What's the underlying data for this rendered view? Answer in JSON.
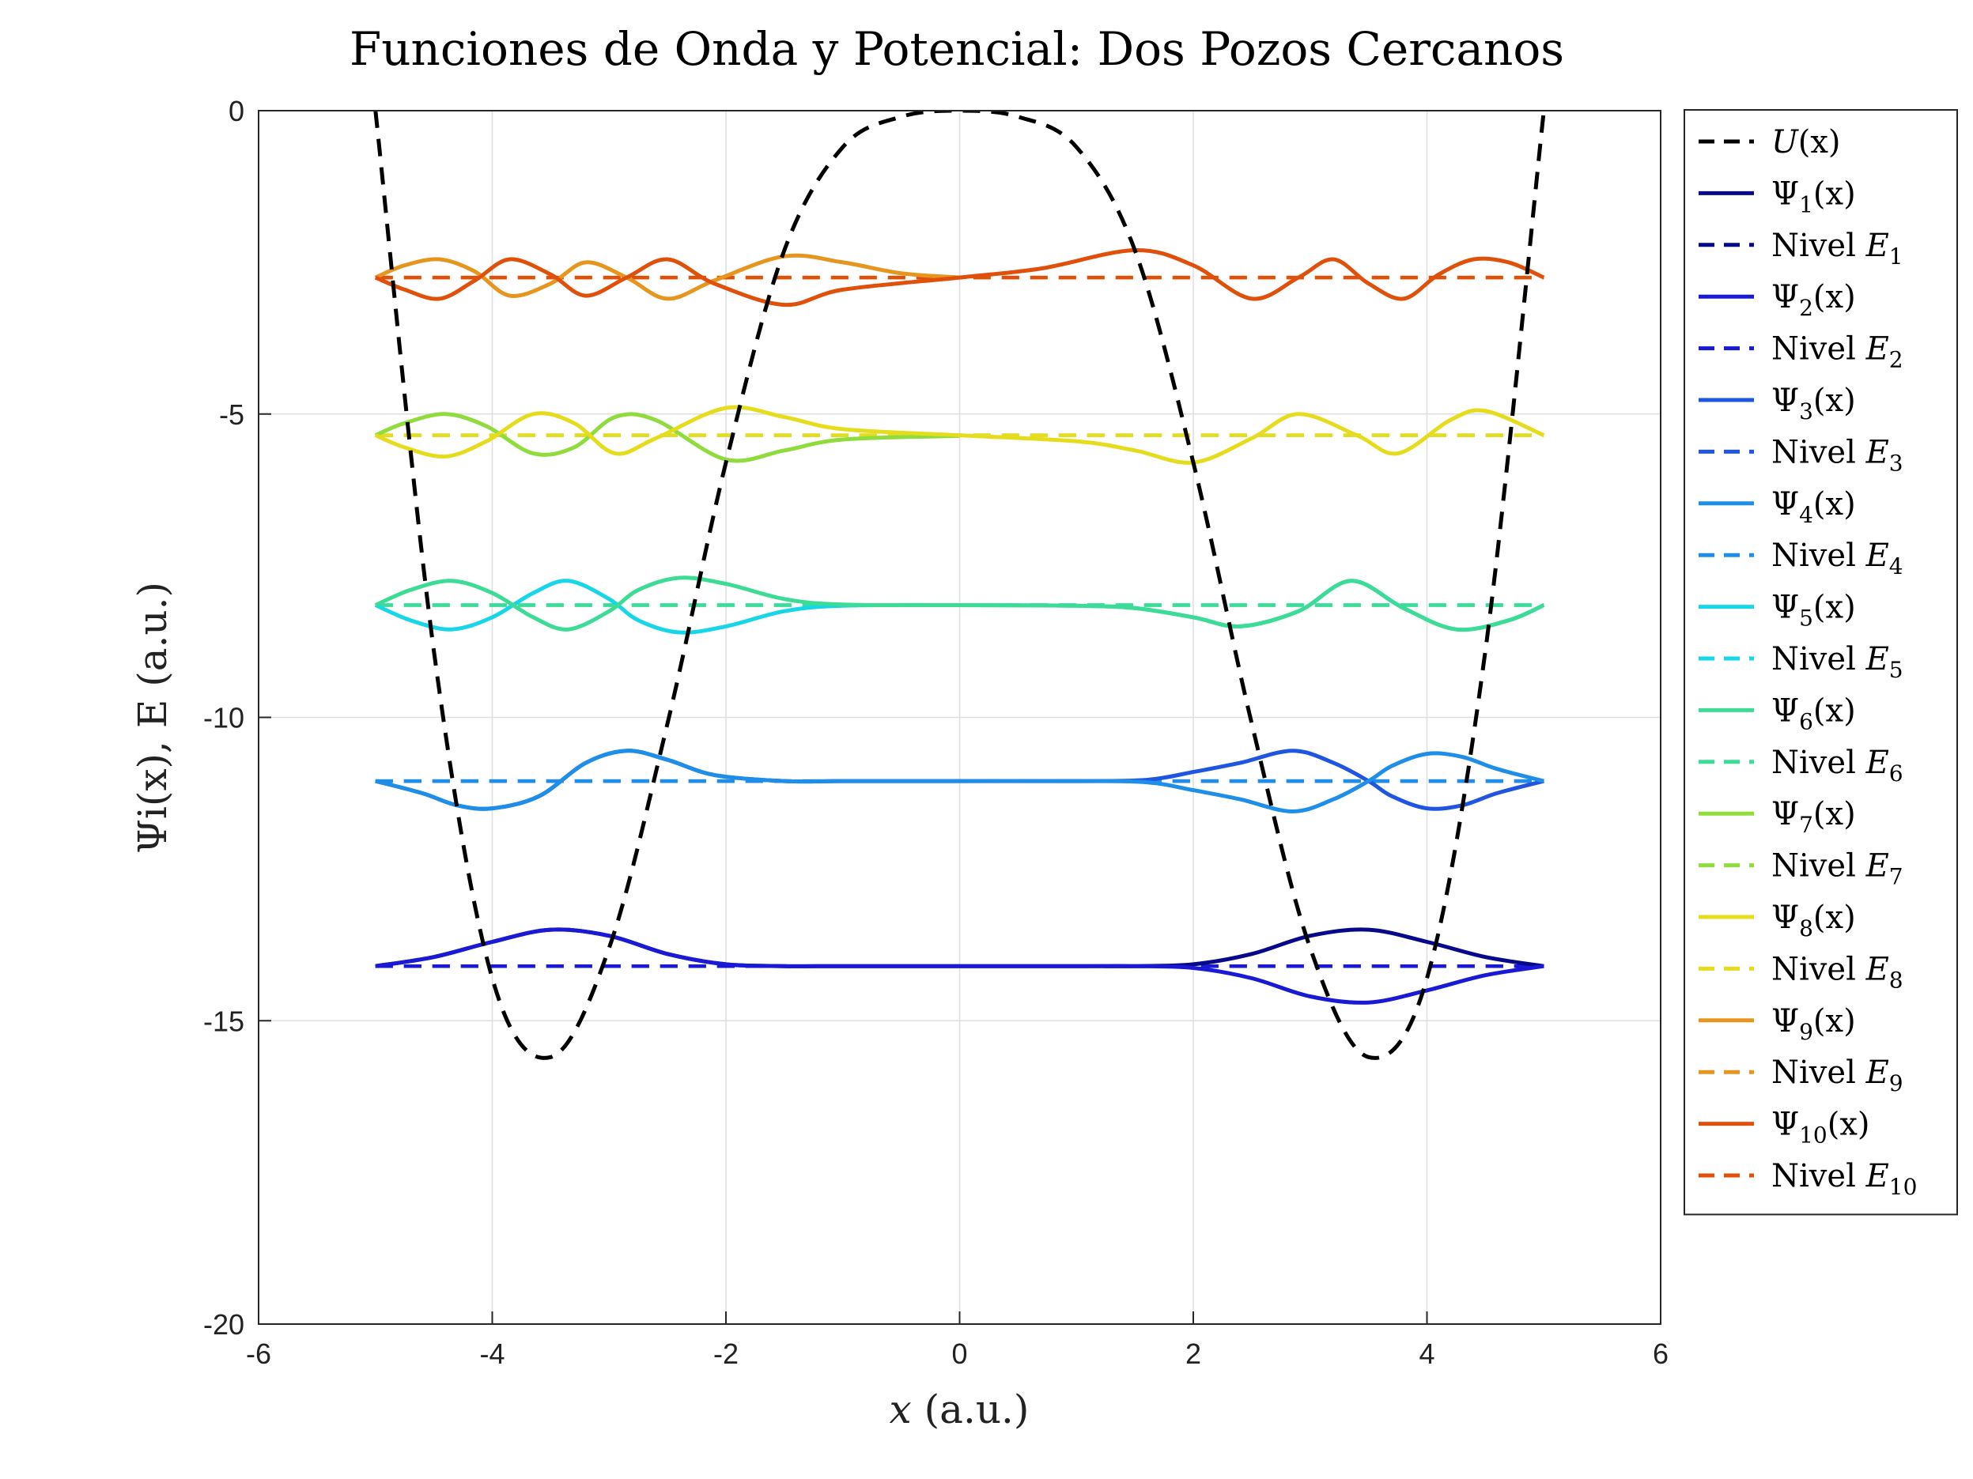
{
  "chart_data": {
    "type": "line",
    "title": "Funciones de Onda y Potencial: Dos Pozos Cercanos",
    "xlabel": "x (a.u.)",
    "ylabel": "Ψi(x), E (a.u.)",
    "xlim": [
      -6,
      6
    ],
    "ylim": [
      -20,
      0
    ],
    "xticks": [
      -6,
      -4,
      -2,
      0,
      2,
      4,
      6
    ],
    "yticks": [
      0,
      -5,
      -10,
      -15,
      -20
    ],
    "xtick_labels": [
      "-6",
      "-4",
      "-2",
      "0",
      "2",
      "4",
      "6"
    ],
    "ytick_labels": [
      "0",
      "-5",
      "-10",
      "-15",
      "-20"
    ],
    "grid": true,
    "legend_position": "outside-right",
    "potential": {
      "name": "U(x)",
      "color": "#000000",
      "style": "dashed",
      "x": [
        -5,
        -4.5,
        -4,
        -3.5,
        -3,
        -2.5,
        -2,
        -1.5,
        -1,
        -0.5,
        0,
        0.5,
        1,
        1.5,
        2,
        2.5,
        3,
        3.5,
        4,
        4.5,
        5
      ],
      "y": [
        0,
        -8.9,
        -14.3,
        -15.6,
        -13.8,
        -10.1,
        -5.8,
        -2.3,
        -0.6,
        -0.1,
        0,
        -0.1,
        -0.6,
        -2.3,
        -5.8,
        -10.1,
        -13.8,
        -15.6,
        -14.3,
        -8.9,
        0
      ]
    },
    "energy_levels": [
      -14.1,
      -14.1,
      -11.05,
      -11.05,
      -8.15,
      -8.15,
      -5.35,
      -5.35,
      -2.75,
      -2.75
    ],
    "series": [
      {
        "name": "Ψ1(x)",
        "color": "#08088a",
        "style": "solid",
        "x": [
          -5,
          -4.5,
          -4,
          -3.5,
          -3,
          -2.5,
          -2,
          -1.5,
          -1,
          0,
          1,
          1.5,
          2,
          2.5,
          3,
          3.5,
          4,
          4.5,
          5
        ],
        "y": [
          -14.1,
          -13.95,
          -13.7,
          -13.5,
          -13.6,
          -13.9,
          -14.07,
          -14.1,
          -14.1,
          -14.1,
          -14.1,
          -14.1,
          -14.07,
          -13.9,
          -13.6,
          -13.5,
          -13.7,
          -13.95,
          -14.1
        ]
      },
      {
        "name": "Nivel E1",
        "color": "#08088a",
        "style": "dashed",
        "x": [
          -5,
          5
        ],
        "y": [
          -14.1,
          -14.1
        ]
      },
      {
        "name": "Ψ2(x)",
        "color": "#1a1ad6",
        "style": "solid",
        "x": [
          -5,
          -4.5,
          -4,
          -3.5,
          -3,
          -2.5,
          -2,
          -1.5,
          -1,
          0,
          1,
          1.5,
          2,
          2.5,
          3,
          3.5,
          4,
          4.5,
          5
        ],
        "y": [
          -14.1,
          -13.95,
          -13.7,
          -13.5,
          -13.6,
          -13.9,
          -14.07,
          -14.1,
          -14.1,
          -14.1,
          -14.1,
          -14.1,
          -14.13,
          -14.3,
          -14.6,
          -14.7,
          -14.5,
          -14.25,
          -14.1
        ]
      },
      {
        "name": "Nivel E2",
        "color": "#1a1ad6",
        "style": "dashed",
        "x": [
          -5,
          5
        ],
        "y": [
          -14.1,
          -14.1
        ]
      },
      {
        "name": "Ψ3(x)",
        "color": "#1f55e0",
        "style": "solid",
        "x": [
          -5,
          -4.6,
          -4.3,
          -4,
          -3.6,
          -3.2,
          -2.85,
          -2.5,
          -2.1,
          -1.5,
          -1,
          0,
          1,
          1.6,
          2,
          2.4,
          2.85,
          3.2,
          3.5,
          3.7,
          4,
          4.3,
          4.6,
          5
        ],
        "y": [
          -11.05,
          -11.25,
          -11.45,
          -11.5,
          -11.3,
          -10.75,
          -10.55,
          -10.7,
          -10.95,
          -11.05,
          -11.05,
          -11.05,
          -11.05,
          -11.03,
          -10.9,
          -10.75,
          -10.55,
          -10.75,
          -11.05,
          -11.3,
          -11.5,
          -11.45,
          -11.25,
          -11.05
        ]
      },
      {
        "name": "Nivel E3",
        "color": "#1f55e0",
        "style": "dashed",
        "x": [
          -5,
          5
        ],
        "y": [
          -11.05,
          -11.05
        ]
      },
      {
        "name": "Ψ4(x)",
        "color": "#1e8ee8",
        "style": "solid",
        "x": [
          -5,
          -4.6,
          -4.3,
          -4,
          -3.6,
          -3.2,
          -2.85,
          -2.5,
          -2.1,
          -1.5,
          -1,
          0,
          1,
          1.6,
          2,
          2.4,
          2.85,
          3.2,
          3.5,
          3.7,
          4,
          4.3,
          4.6,
          5
        ],
        "y": [
          -11.05,
          -11.25,
          -11.45,
          -11.5,
          -11.3,
          -10.75,
          -10.55,
          -10.7,
          -10.95,
          -11.05,
          -11.05,
          -11.05,
          -11.05,
          -11.07,
          -11.2,
          -11.35,
          -11.55,
          -11.35,
          -11.05,
          -10.8,
          -10.6,
          -10.65,
          -10.85,
          -11.05
        ]
      },
      {
        "name": "Nivel E4",
        "color": "#1e8ee8",
        "style": "dashed",
        "x": [
          -5,
          5
        ],
        "y": [
          -11.05,
          -11.05
        ]
      },
      {
        "name": "Ψ5(x)",
        "color": "#17d6e8",
        "style": "solid",
        "x": [
          -5,
          -4.7,
          -4.35,
          -4.0,
          -3.65,
          -3.35,
          -3.0,
          -2.75,
          -2.4,
          -2.0,
          -1.5,
          -1,
          0,
          1,
          1.5,
          2,
          2.4,
          2.9,
          3.35,
          3.8,
          4.25,
          4.7,
          5
        ],
        "y": [
          -8.15,
          -8.4,
          -8.55,
          -8.35,
          -7.95,
          -7.75,
          -8.05,
          -8.4,
          -8.6,
          -8.5,
          -8.25,
          -8.16,
          -8.15,
          -8.16,
          -8.2,
          -8.35,
          -8.5,
          -8.25,
          -7.75,
          -8.2,
          -8.55,
          -8.4,
          -8.15
        ]
      },
      {
        "name": "Nivel E5",
        "color": "#17d6e8",
        "style": "dashed",
        "x": [
          -5,
          5
        ],
        "y": [
          -8.15,
          -8.15
        ]
      },
      {
        "name": "Ψ6(x)",
        "color": "#3cdc96",
        "style": "solid",
        "x": [
          -5,
          -4.7,
          -4.35,
          -4.0,
          -3.65,
          -3.35,
          -3.0,
          -2.75,
          -2.4,
          -2.0,
          -1.5,
          -1,
          0,
          1,
          1.5,
          2,
          2.4,
          2.9,
          3.35,
          3.8,
          4.25,
          4.7,
          5
        ],
        "y": [
          -8.15,
          -7.9,
          -7.75,
          -7.95,
          -8.35,
          -8.55,
          -8.25,
          -7.9,
          -7.7,
          -7.8,
          -8.05,
          -8.14,
          -8.15,
          -8.16,
          -8.2,
          -8.35,
          -8.5,
          -8.25,
          -7.75,
          -8.2,
          -8.55,
          -8.4,
          -8.15
        ]
      },
      {
        "name": "Nivel E6",
        "color": "#3cdc96",
        "style": "dashed",
        "x": [
          -5,
          5
        ],
        "y": [
          -8.15,
          -8.15
        ]
      },
      {
        "name": "Ψ7(x)",
        "color": "#8fdc3c",
        "style": "solid",
        "x": [
          -5,
          -4.75,
          -4.4,
          -4.05,
          -3.65,
          -3.3,
          -2.95,
          -2.6,
          -2.0,
          -1.5,
          -1,
          0
        ],
        "y": [
          -5.35,
          -5.15,
          -5.0,
          -5.2,
          -5.65,
          -5.55,
          -5.05,
          -5.1,
          -5.75,
          -5.6,
          -5.42,
          -5.36
        ]
      },
      {
        "name": "Nivel E7",
        "color": "#8fdc3c",
        "style": "dashed",
        "x": [
          -5,
          5
        ],
        "y": [
          -5.35,
          -5.35
        ]
      },
      {
        "name": "Ψ8(x)",
        "color": "#e6dc1e",
        "style": "solid",
        "x": [
          -5,
          -4.75,
          -4.4,
          -4.05,
          -3.65,
          -3.3,
          -2.95,
          -2.6,
          -2.0,
          -1.5,
          -1,
          0,
          1,
          1.5,
          2,
          2.5,
          2.9,
          3.4,
          3.75,
          4.2,
          4.5,
          5
        ],
        "y": [
          -5.35,
          -5.55,
          -5.7,
          -5.45,
          -5.0,
          -5.15,
          -5.65,
          -5.4,
          -4.9,
          -5.05,
          -5.25,
          -5.35,
          -5.45,
          -5.6,
          -5.8,
          -5.4,
          -5.0,
          -5.35,
          -5.65,
          -5.1,
          -4.95,
          -5.35
        ]
      },
      {
        "name": "Nivel E8",
        "color": "#e6dc1e",
        "style": "dashed",
        "x": [
          -5,
          5
        ],
        "y": [
          -5.35,
          -5.35
        ]
      },
      {
        "name": "Ψ9(x)",
        "color": "#e6961e",
        "style": "solid",
        "x": [
          -5,
          -4.75,
          -4.45,
          -4.15,
          -3.85,
          -3.5,
          -3.2,
          -2.85,
          -2.5,
          -2.1,
          -1.5,
          -1,
          -0.5,
          0
        ],
        "y": [
          -2.75,
          -2.55,
          -2.45,
          -2.65,
          -3.05,
          -2.85,
          -2.5,
          -2.75,
          -3.1,
          -2.8,
          -2.4,
          -2.5,
          -2.68,
          -2.75
        ]
      },
      {
        "name": "Nivel E9",
        "color": "#e6961e",
        "style": "dashed",
        "x": [
          -5,
          5
        ],
        "y": [
          -2.75,
          -2.75
        ]
      },
      {
        "name": "Ψ10(x)",
        "color": "#e0500a",
        "style": "solid",
        "x": [
          -5,
          -4.75,
          -4.45,
          -4.15,
          -3.85,
          -3.5,
          -3.2,
          -2.85,
          -2.5,
          -2.1,
          -1.5,
          -1,
          0,
          0.7,
          1.5,
          2.0,
          2.5,
          2.9,
          3.2,
          3.5,
          3.8,
          4.1,
          4.4,
          4.7,
          5
        ],
        "y": [
          -2.75,
          -2.95,
          -3.1,
          -2.8,
          -2.45,
          -2.7,
          -3.05,
          -2.75,
          -2.45,
          -2.85,
          -3.2,
          -2.95,
          -2.75,
          -2.6,
          -2.3,
          -2.55,
          -3.1,
          -2.75,
          -2.45,
          -2.85,
          -3.1,
          -2.7,
          -2.45,
          -2.5,
          -2.75
        ]
      },
      {
        "name": "Nivel E10",
        "color": "#e0500a",
        "style": "dashed",
        "x": [
          -5,
          5
        ],
        "y": [
          -2.75,
          -2.75
        ]
      }
    ],
    "legend": [
      {
        "prefix": "",
        "symbol": "U",
        "sub": "",
        "suffix": "(x)",
        "color": "#000000",
        "style": "dashed"
      },
      {
        "prefix": "",
        "symbol": "Ψ",
        "sub": "1",
        "suffix": "(x)",
        "color": "#08088a",
        "style": "solid"
      },
      {
        "prefix": "Nivel ",
        "symbol": "E",
        "sub": "1",
        "suffix": "",
        "color": "#08088a",
        "style": "dashed"
      },
      {
        "prefix": "",
        "symbol": "Ψ",
        "sub": "2",
        "suffix": "(x)",
        "color": "#1a1ad6",
        "style": "solid"
      },
      {
        "prefix": "Nivel ",
        "symbol": "E",
        "sub": "2",
        "suffix": "",
        "color": "#1a1ad6",
        "style": "dashed"
      },
      {
        "prefix": "",
        "symbol": "Ψ",
        "sub": "3",
        "suffix": "(x)",
        "color": "#1f55e0",
        "style": "solid"
      },
      {
        "prefix": "Nivel ",
        "symbol": "E",
        "sub": "3",
        "suffix": "",
        "color": "#1f55e0",
        "style": "dashed"
      },
      {
        "prefix": "",
        "symbol": "Ψ",
        "sub": "4",
        "suffix": "(x)",
        "color": "#1e8ee8",
        "style": "solid"
      },
      {
        "prefix": "Nivel ",
        "symbol": "E",
        "sub": "4",
        "suffix": "",
        "color": "#1e8ee8",
        "style": "dashed"
      },
      {
        "prefix": "",
        "symbol": "Ψ",
        "sub": "5",
        "suffix": "(x)",
        "color": "#17d6e8",
        "style": "solid"
      },
      {
        "prefix": "Nivel ",
        "symbol": "E",
        "sub": "5",
        "suffix": "",
        "color": "#17d6e8",
        "style": "dashed"
      },
      {
        "prefix": "",
        "symbol": "Ψ",
        "sub": "6",
        "suffix": "(x)",
        "color": "#3cdc96",
        "style": "solid"
      },
      {
        "prefix": "Nivel ",
        "symbol": "E",
        "sub": "6",
        "suffix": "",
        "color": "#3cdc96",
        "style": "dashed"
      },
      {
        "prefix": "",
        "symbol": "Ψ",
        "sub": "7",
        "suffix": "(x)",
        "color": "#8fdc3c",
        "style": "solid"
      },
      {
        "prefix": "Nivel ",
        "symbol": "E",
        "sub": "7",
        "suffix": "",
        "color": "#8fdc3c",
        "style": "dashed"
      },
      {
        "prefix": "",
        "symbol": "Ψ",
        "sub": "8",
        "suffix": "(x)",
        "color": "#e6dc1e",
        "style": "solid"
      },
      {
        "prefix": "Nivel ",
        "symbol": "E",
        "sub": "8",
        "suffix": "",
        "color": "#e6dc1e",
        "style": "dashed"
      },
      {
        "prefix": "",
        "symbol": "Ψ",
        "sub": "9",
        "suffix": "(x)",
        "color": "#e6961e",
        "style": "solid"
      },
      {
        "prefix": "Nivel ",
        "symbol": "E",
        "sub": "9",
        "suffix": "",
        "color": "#e6961e",
        "style": "dashed"
      },
      {
        "prefix": "",
        "symbol": "Ψ",
        "sub": "10",
        "suffix": "(x)",
        "color": "#e0500a",
        "style": "solid"
      },
      {
        "prefix": "Nivel ",
        "symbol": "E",
        "sub": "10",
        "suffix": "",
        "color": "#e0500a",
        "style": "dashed"
      }
    ]
  }
}
